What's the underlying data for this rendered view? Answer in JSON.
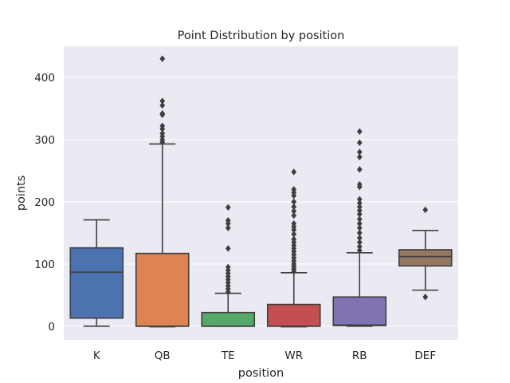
{
  "chart_data": {
    "type": "box",
    "title": "Point Distribution by position",
    "xlabel": "position",
    "ylabel": "points",
    "categories": [
      "K",
      "QB",
      "TE",
      "WR",
      "RB",
      "DEF"
    ],
    "yticks": [
      0,
      100,
      200,
      300,
      400
    ],
    "ylim": [
      -22,
      450
    ],
    "grid": true,
    "boxes": [
      {
        "category": "K",
        "whisker_low": 0,
        "q1": 13,
        "median": 87,
        "q3": 126,
        "whisker_high": 171,
        "outliers": [],
        "color": "#4c72b0"
      },
      {
        "category": "QB",
        "whisker_low": -1,
        "q1": 0,
        "median": 0,
        "q3": 117,
        "whisker_high": 293,
        "outliers": [
          296,
          300,
          305,
          310,
          317,
          322,
          340,
          342,
          355,
          362,
          430
        ],
        "color": "#dd8452"
      },
      {
        "category": "TE",
        "whisker_low": 0,
        "q1": 0,
        "median": 0,
        "q3": 22,
        "whisker_high": 53,
        "outliers": [
          55,
          60,
          65,
          70,
          75,
          80,
          85,
          90,
          95,
          125,
          158,
          165,
          170,
          191
        ],
        "color": "#55a868"
      },
      {
        "category": "WR",
        "whisker_low": -1,
        "q1": 0,
        "median": 0,
        "q3": 35,
        "whisker_high": 86,
        "outliers": [
          88,
          92,
          96,
          100,
          105,
          110,
          115,
          120,
          125,
          130,
          135,
          140,
          148,
          155,
          160,
          165,
          178,
          185,
          192,
          200,
          210,
          215,
          220,
          248
        ],
        "color": "#c44e52"
      },
      {
        "category": "RB",
        "whisker_low": 0,
        "q1": 1,
        "median": 2,
        "q3": 47,
        "whisker_high": 118,
        "outliers": [
          122,
          128,
          135,
          142,
          150,
          158,
          165,
          172,
          180,
          186,
          192,
          198,
          204,
          224,
          228,
          252,
          272,
          280,
          295,
          313
        ],
        "color": "#8172b3"
      },
      {
        "category": "DEF",
        "whisker_low": 58,
        "q1": 97,
        "median": 112,
        "q3": 123,
        "whisker_high": 154,
        "outliers": [
          47,
          187
        ],
        "color": "#937860"
      }
    ]
  }
}
